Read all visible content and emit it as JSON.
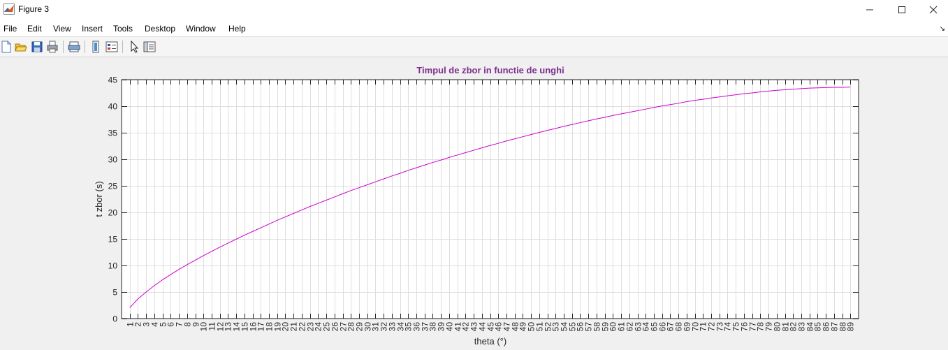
{
  "window": {
    "title": "Figure 3"
  },
  "menu": [
    "File",
    "Edit",
    "View",
    "Insert",
    "Tools",
    "Desktop",
    "Window",
    "Help"
  ],
  "toolbar": {
    "icons": [
      "new-figure-icon",
      "open-file-icon",
      "save-icon",
      "print-icon",
      "print-preview-icon",
      "colorbar-icon",
      "legend-icon",
      "pointer-icon",
      "property-editor-icon"
    ]
  },
  "colors": {
    "line": "#cc00cc",
    "title": "#7e2f8e"
  },
  "chart_data": {
    "type": "line",
    "title": "Timpul de zbor in functie de unghi",
    "xlabel": "theta (°)",
    "ylabel": "t zbor (s)",
    "xlim": [
      0,
      90
    ],
    "ylim": [
      0,
      45
    ],
    "xticks": [
      1,
      2,
      3,
      4,
      5,
      6,
      7,
      8,
      9,
      10,
      11,
      12,
      13,
      14,
      15,
      16,
      17,
      18,
      19,
      20,
      21,
      22,
      23,
      24,
      25,
      26,
      27,
      28,
      29,
      30,
      31,
      32,
      33,
      34,
      35,
      36,
      37,
      38,
      39,
      40,
      41,
      42,
      43,
      44,
      45,
      46,
      47,
      48,
      49,
      50,
      51,
      52,
      53,
      54,
      55,
      56,
      57,
      58,
      59,
      60,
      61,
      62,
      63,
      64,
      65,
      66,
      67,
      68,
      69,
      70,
      71,
      72,
      73,
      74,
      75,
      76,
      77,
      78,
      79,
      80,
      81,
      82,
      83,
      84,
      85,
      86,
      87,
      88,
      89
    ],
    "yticks": [
      0,
      5,
      10,
      15,
      20,
      25,
      30,
      35,
      40,
      45
    ],
    "grid": true,
    "series": [
      {
        "x": [
          1,
          2,
          3,
          4,
          5,
          6,
          7,
          8,
          9,
          10,
          11,
          12,
          13,
          14,
          15,
          16,
          17,
          18,
          19,
          20,
          21,
          22,
          23,
          24,
          25,
          26,
          27,
          28,
          29,
          30,
          31,
          32,
          33,
          34,
          35,
          36,
          37,
          38,
          39,
          40,
          41,
          42,
          43,
          44,
          45,
          46,
          47,
          48,
          49,
          50,
          51,
          52,
          53,
          54,
          55,
          56,
          57,
          58,
          59,
          60,
          61,
          62,
          63,
          64,
          65,
          66,
          67,
          68,
          69,
          70,
          71,
          72,
          73,
          74,
          75,
          76,
          77,
          78,
          79,
          80,
          81,
          82,
          83,
          84,
          85,
          86,
          87,
          88,
          89
        ],
        "y": [
          2.05,
          3.7,
          5.0,
          6.2,
          7.3,
          8.3,
          9.25,
          10.15,
          11.0,
          11.85,
          12.65,
          13.45,
          14.2,
          14.95,
          15.7,
          16.4,
          17.1,
          17.8,
          18.5,
          19.15,
          19.8,
          20.45,
          21.1,
          21.7,
          22.3,
          22.9,
          23.5,
          24.1,
          24.65,
          25.2,
          25.75,
          26.3,
          26.85,
          27.35,
          27.9,
          28.4,
          28.9,
          29.4,
          29.85,
          30.35,
          30.8,
          31.25,
          31.7,
          32.15,
          32.6,
          33.0,
          33.45,
          33.85,
          34.25,
          34.65,
          35.05,
          35.45,
          35.8,
          36.2,
          36.55,
          36.9,
          37.25,
          37.6,
          37.9,
          38.25,
          38.55,
          38.85,
          39.15,
          39.45,
          39.75,
          40.05,
          40.3,
          40.55,
          40.85,
          41.1,
          41.3,
          41.55,
          41.75,
          41.95,
          42.15,
          42.35,
          42.5,
          42.7,
          42.85,
          43.0,
          43.1,
          43.2,
          43.3,
          43.4,
          43.45,
          43.5,
          43.55,
          43.55,
          43.6
        ]
      }
    ]
  }
}
